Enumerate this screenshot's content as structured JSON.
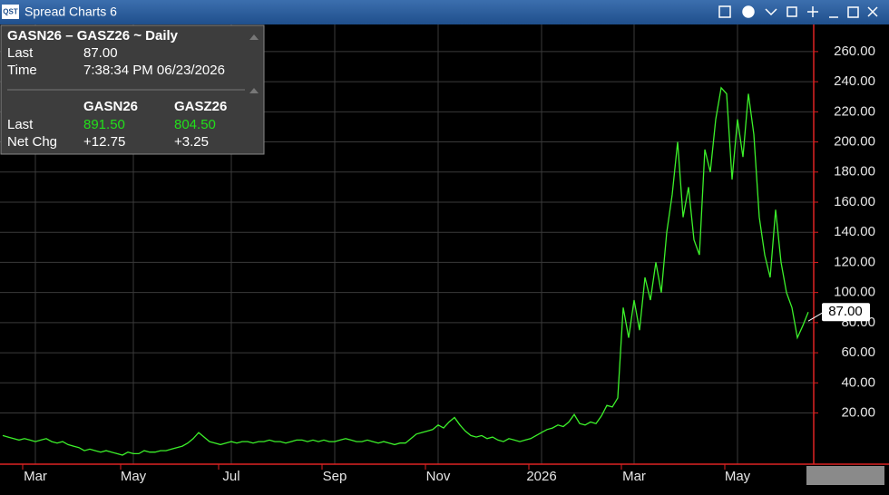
{
  "window": {
    "logo": "QST",
    "title": "Spread Charts 6"
  },
  "info": {
    "heading": "GASN26 – GASZ26 ~ Daily",
    "last_label": "Last",
    "last": "87.00",
    "time_label": "Time",
    "time": "7:38:34 PM  06/23/2026",
    "legs": [
      "GASN26",
      "GASZ26"
    ],
    "row_last": "Last",
    "leg_last": [
      "891.50",
      "804.50"
    ],
    "row_chg": "Net Chg",
    "leg_chg": [
      "+12.75",
      "+3.25"
    ]
  },
  "chart_data": {
    "type": "line",
    "categories": [
      null,
      null,
      null,
      null,
      null,
      null,
      "Mar",
      null,
      null,
      null,
      null,
      null,
      null,
      null,
      null,
      null,
      null,
      null,
      null,
      null,
      null,
      null,
      null,
      null,
      "May",
      null,
      null,
      null,
      null,
      null,
      null,
      null,
      null,
      null,
      null,
      null,
      null,
      null,
      null,
      null,
      null,
      null,
      "Jul",
      null,
      null,
      null,
      null,
      null,
      null,
      null,
      null,
      null,
      null,
      null,
      null,
      null,
      null,
      null,
      null,
      null,
      null,
      "Sep",
      null,
      null,
      null,
      null,
      null,
      null,
      null,
      null,
      null,
      null,
      null,
      null,
      null,
      null,
      null,
      null,
      null,
      null,
      "Nov",
      null,
      null,
      null,
      null,
      null,
      null,
      null,
      null,
      null,
      null,
      null,
      null,
      null,
      null,
      null,
      null,
      null,
      null,
      "2026",
      null,
      null,
      null,
      null,
      null,
      null,
      null,
      null,
      null,
      null,
      null,
      null,
      null,
      null,
      null,
      null,
      "Mar",
      null,
      null,
      null,
      null,
      null,
      null,
      null,
      null,
      null,
      null,
      null,
      null,
      null,
      null,
      null,
      null,
      null,
      null,
      "May",
      null,
      null,
      null,
      null,
      null,
      null,
      null,
      null,
      null,
      null,
      null,
      null,
      null
    ],
    "series": [
      {
        "name": "GASN26 – GASZ26",
        "color": "#3cf02a",
        "values": [
          5,
          4,
          3,
          2,
          3,
          2,
          1,
          2,
          3,
          1,
          0,
          1,
          -1,
          -2,
          -3,
          -5,
          -4,
          -5,
          -6,
          -5,
          -6,
          -7,
          -8,
          -6,
          -7,
          -7,
          -5,
          -6,
          -6,
          -5,
          -5,
          -4,
          -3,
          -2,
          0,
          3,
          7,
          4,
          1,
          0,
          -1,
          0,
          1,
          0,
          1,
          1,
          0,
          1,
          1,
          2,
          1,
          1,
          0,
          1,
          2,
          2,
          1,
          2,
          1,
          2,
          1,
          1,
          2,
          3,
          2,
          1,
          1,
          2,
          1,
          0,
          1,
          0,
          -1,
          0,
          0,
          3,
          6,
          7,
          8,
          9,
          12,
          10,
          14,
          17,
          12,
          8,
          5,
          4,
          5,
          3,
          4,
          2,
          1,
          3,
          2,
          1,
          2,
          3,
          5,
          7,
          9,
          10,
          12,
          11,
          14,
          19,
          13,
          12,
          14,
          13,
          18,
          25,
          24,
          30,
          90,
          70,
          95,
          75,
          110,
          95,
          120,
          100,
          140,
          165,
          200,
          150,
          170,
          135,
          125,
          195,
          180,
          215,
          236,
          232,
          175,
          215,
          190,
          232,
          205,
          150,
          125,
          110,
          155,
          120,
          100,
          90,
          70,
          78,
          87
        ]
      }
    ],
    "ylim": [
      -14,
      278
    ],
    "yticks": [
      {
        "value": 20,
        "label": "20.00"
      },
      {
        "value": 40,
        "label": "40.00"
      },
      {
        "value": 60,
        "label": "60.00"
      },
      {
        "value": 80,
        "label": "80.00"
      },
      {
        "value": 100,
        "label": "100.00"
      },
      {
        "value": 120,
        "label": "120.00"
      },
      {
        "value": 140,
        "label": "140.00"
      },
      {
        "value": 160,
        "label": "160.00"
      },
      {
        "value": 180,
        "label": "180.00"
      },
      {
        "value": 200,
        "label": "200.00"
      },
      {
        "value": 220,
        "label": "220.00"
      },
      {
        "value": 240,
        "label": "240.00"
      },
      {
        "value": 260,
        "label": "260.00"
      }
    ],
    "grid": true
  }
}
